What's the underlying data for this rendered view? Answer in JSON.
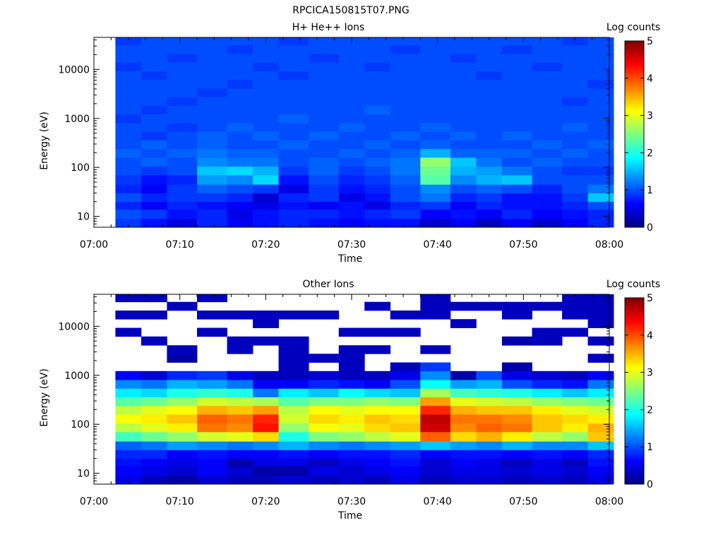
{
  "figure": {
    "title": "RPCICA150815T07.PNG"
  },
  "chart_data": [
    {
      "type": "heatmap",
      "title": "H+ He++ Ions",
      "xlabel": "Time",
      "ylabel": "Energy (eV)",
      "x_ticks": [
        "07:00",
        "07:10",
        "07:20",
        "07:30",
        "07:40",
        "07:50",
        "08:00"
      ],
      "xlim": [
        "07:00",
        "08:00"
      ],
      "y_ticks": [
        10,
        100,
        1000,
        10000
      ],
      "ylim": [
        6,
        45000
      ],
      "y_scale": "log",
      "colorbar": {
        "label": "Log counts",
        "range": [
          0,
          5
        ],
        "ticks": [
          "0",
          "1",
          "2",
          "3",
          "4",
          "5"
        ],
        "colormap": "jet"
      },
      "time_bins": [
        "07:04",
        "07:07",
        "07:10",
        "07:14",
        "07:17",
        "07:20",
        "07:23",
        "07:27",
        "07:30",
        "07:33",
        "07:36",
        "07:40",
        "07:43",
        "07:46",
        "07:49",
        "07:53",
        "07:56",
        "07:59"
      ],
      "energy_edges": [
        6,
        9,
        14,
        20,
        30,
        45,
        70,
        105,
        160,
        240,
        360,
        540,
        810,
        1220,
        1830,
        2750,
        4100,
        6200,
        9300,
        14000,
        21000,
        31500,
        45000
      ],
      "values_by_energy_bin": [
        [
          0.9,
          0.7,
          0.5,
          0.8,
          0.6,
          0.7,
          0.8,
          0.7,
          0.6,
          0.7,
          0.7,
          0.4,
          0.6,
          0.3,
          0.6,
          0.4,
          0.6,
          0.8
        ],
        [
          1.0,
          0.9,
          0.7,
          0.8,
          0.5,
          0.7,
          0.8,
          0.8,
          0.7,
          0.8,
          0.9,
          0.6,
          0.7,
          0.6,
          0.8,
          0.6,
          0.7,
          0.8
        ],
        [
          0.8,
          0.6,
          0.8,
          0.7,
          0.6,
          0.5,
          0.7,
          0.6,
          0.7,
          0.5,
          0.8,
          0.9,
          0.6,
          0.8,
          0.7,
          0.7,
          0.8,
          1.0
        ],
        [
          1.0,
          0.8,
          0.9,
          0.9,
          0.8,
          0.4,
          0.8,
          0.9,
          0.5,
          0.7,
          1.0,
          1.2,
          0.8,
          0.9,
          0.7,
          0.7,
          0.9,
          1.6
        ],
        [
          0.8,
          0.6,
          0.9,
          1.1,
          1.0,
          0.9,
          0.5,
          0.9,
          0.7,
          0.8,
          1.0,
          1.3,
          1.0,
          1.1,
          1.0,
          0.8,
          1.0,
          1.2
        ],
        [
          0.9,
          0.7,
          0.8,
          1.4,
          1.3,
          1.7,
          0.7,
          1.0,
          0.8,
          0.9,
          1.1,
          2.3,
          1.3,
          1.5,
          1.6,
          1.0,
          1.0,
          1.0
        ],
        [
          1.0,
          0.9,
          1.0,
          1.6,
          1.7,
          1.5,
          0.9,
          1.1,
          0.9,
          1.0,
          1.2,
          2.4,
          1.5,
          1.4,
          1.2,
          1.0,
          0.9,
          0.9
        ],
        [
          1.0,
          1.1,
          1.0,
          1.3,
          1.2,
          1.2,
          1.0,
          1.1,
          1.0,
          1.1,
          1.2,
          2.6,
          1.6,
          1.2,
          1.0,
          1.1,
          1.0,
          1.0
        ],
        [
          1.1,
          1.0,
          1.1,
          1.2,
          1.1,
          1.1,
          1.0,
          1.0,
          1.1,
          1.0,
          1.1,
          1.5,
          1.1,
          1.1,
          1.1,
          1.0,
          1.1,
          1.0
        ],
        [
          1.0,
          1.1,
          1.0,
          1.1,
          1.0,
          1.0,
          1.1,
          1.0,
          1.0,
          1.1,
          1.0,
          1.1,
          1.0,
          1.0,
          1.0,
          1.1,
          1.0,
          1.1
        ],
        [
          1.0,
          0.9,
          1.0,
          1.1,
          1.0,
          1.1,
          1.0,
          1.1,
          1.0,
          1.0,
          1.1,
          1.0,
          1.1,
          1.0,
          1.1,
          1.0,
          1.0,
          1.0
        ],
        [
          1.0,
          1.0,
          0.9,
          1.0,
          1.1,
          1.0,
          1.0,
          1.0,
          1.1,
          1.0,
          1.0,
          1.1,
          1.0,
          1.0,
          1.0,
          1.0,
          1.1,
          1.0
        ],
        [
          0.9,
          1.0,
          1.0,
          1.0,
          1.0,
          1.0,
          1.1,
          1.0,
          1.0,
          1.0,
          1.0,
          1.0,
          1.0,
          1.0,
          1.0,
          1.0,
          1.0,
          1.0
        ],
        [
          1.0,
          0.9,
          1.0,
          1.0,
          1.0,
          1.0,
          1.0,
          1.0,
          1.0,
          1.1,
          1.0,
          1.0,
          1.0,
          1.0,
          1.0,
          1.0,
          1.0,
          1.0
        ],
        [
          1.0,
          1.0,
          0.9,
          1.0,
          1.0,
          1.0,
          1.0,
          1.0,
          1.0,
          1.0,
          1.0,
          1.0,
          1.0,
          1.0,
          1.0,
          1.0,
          0.9,
          1.0
        ],
        [
          1.0,
          1.0,
          1.0,
          0.9,
          1.0,
          1.0,
          1.0,
          1.0,
          1.0,
          1.0,
          1.0,
          1.0,
          1.0,
          1.0,
          1.0,
          1.0,
          1.0,
          1.0
        ],
        [
          1.0,
          1.0,
          1.0,
          1.0,
          0.9,
          1.0,
          1.0,
          1.0,
          1.0,
          1.0,
          1.0,
          1.0,
          1.0,
          1.0,
          1.0,
          1.0,
          1.0,
          0.9
        ],
        [
          1.0,
          0.9,
          1.0,
          1.0,
          1.0,
          1.0,
          0.9,
          1.0,
          1.0,
          1.0,
          1.0,
          1.0,
          1.0,
          0.9,
          1.0,
          1.0,
          1.0,
          1.0
        ],
        [
          0.9,
          1.0,
          1.0,
          1.0,
          1.0,
          0.9,
          1.0,
          1.0,
          1.0,
          0.9,
          1.0,
          1.0,
          1.0,
          1.0,
          1.0,
          0.9,
          1.0,
          1.0
        ],
        [
          1.0,
          1.0,
          0.9,
          1.0,
          1.0,
          1.0,
          1.0,
          0.9,
          1.0,
          1.0,
          1.0,
          1.0,
          0.9,
          1.0,
          1.0,
          1.0,
          1.0,
          1.0
        ],
        [
          1.0,
          1.0,
          1.0,
          1.0,
          0.9,
          1.0,
          1.0,
          1.0,
          1.0,
          1.0,
          0.9,
          1.0,
          1.0,
          1.0,
          0.9,
          1.0,
          1.0,
          1.0
        ],
        [
          0.9,
          1.0,
          1.0,
          1.0,
          1.0,
          1.0,
          0.9,
          1.0,
          1.0,
          1.0,
          1.0,
          1.0,
          1.0,
          1.0,
          1.0,
          1.0,
          0.9,
          1.0
        ]
      ]
    },
    {
      "type": "heatmap",
      "title": "Other Ions",
      "xlabel": "Time",
      "ylabel": "Energy (eV)",
      "x_ticks": [
        "07:00",
        "07:10",
        "07:20",
        "07:30",
        "07:40",
        "07:50",
        "08:00"
      ],
      "xlim": [
        "07:00",
        "08:00"
      ],
      "y_ticks": [
        10,
        100,
        1000,
        10000
      ],
      "ylim": [
        6,
        45000
      ],
      "y_scale": "log",
      "colorbar": {
        "label": "Log counts",
        "range": [
          0,
          5
        ],
        "ticks": [
          "0",
          "1",
          "2",
          "3",
          "4",
          "5"
        ],
        "colormap": "jet"
      },
      "time_bins": [
        "07:04",
        "07:07",
        "07:10",
        "07:14",
        "07:17",
        "07:20",
        "07:23",
        "07:27",
        "07:30",
        "07:33",
        "07:36",
        "07:40",
        "07:43",
        "07:46",
        "07:49",
        "07:53",
        "07:56",
        "07:59"
      ],
      "energy_edges": [
        6,
        9,
        14,
        20,
        30,
        45,
        70,
        105,
        160,
        240,
        360,
        540,
        810,
        1220,
        1830,
        2750,
        4100,
        6200,
        9300,
        14000,
        21000,
        31500,
        45000
      ],
      "values_by_energy_bin": [
        [
          0.5,
          0.3,
          0.2,
          0.4,
          0.3,
          0.3,
          0.4,
          0.3,
          0.4,
          0.3,
          0.5,
          0.3,
          0.4,
          0.4,
          0.3,
          0.4,
          0.3,
          0.5
        ],
        [
          0.6,
          0.5,
          0.4,
          0.6,
          0.4,
          0.2,
          0.2,
          0.5,
          0.4,
          0.5,
          0.6,
          0.4,
          0.5,
          0.5,
          0.4,
          0.5,
          0.4,
          0.6
        ],
        [
          0.7,
          0.6,
          0.5,
          0.6,
          0.2,
          0.5,
          0.5,
          0.3,
          0.5,
          0.6,
          0.7,
          0.4,
          0.6,
          0.5,
          0.3,
          0.5,
          0.3,
          0.7
        ],
        [
          0.8,
          0.8,
          0.6,
          0.7,
          0.6,
          0.6,
          0.7,
          0.6,
          0.7,
          0.7,
          0.8,
          0.6,
          0.7,
          0.7,
          0.6,
          0.7,
          0.6,
          0.8
        ],
        [
          1.1,
          1.2,
          1.4,
          1.3,
          1.2,
          1.3,
          1.5,
          1.3,
          1.2,
          1.3,
          1.4,
          1.6,
          1.4,
          1.3,
          1.5,
          1.3,
          1.3,
          1.6
        ],
        [
          2.2,
          2.4,
          2.6,
          2.9,
          3.0,
          3.3,
          2.0,
          2.5,
          2.6,
          2.8,
          3.0,
          3.9,
          3.3,
          3.5,
          3.2,
          2.8,
          2.6,
          3.4
        ],
        [
          2.8,
          3.0,
          3.2,
          3.8,
          3.7,
          4.3,
          2.6,
          3.1,
          3.0,
          3.3,
          3.4,
          4.6,
          3.7,
          3.9,
          3.8,
          3.4,
          3.2,
          3.5
        ],
        [
          3.1,
          3.2,
          3.4,
          3.9,
          3.8,
          4.2,
          2.9,
          3.3,
          3.2,
          3.4,
          3.3,
          4.7,
          3.8,
          3.8,
          3.7,
          3.4,
          3.3,
          3.2
        ],
        [
          2.8,
          3.0,
          3.1,
          3.5,
          3.4,
          3.6,
          2.8,
          3.1,
          3.0,
          3.1,
          3.1,
          4.2,
          3.5,
          3.4,
          3.4,
          3.2,
          3.0,
          2.9
        ],
        [
          2.3,
          2.4,
          2.6,
          2.9,
          2.8,
          2.7,
          2.3,
          2.5,
          2.5,
          2.6,
          2.5,
          3.6,
          3.0,
          2.9,
          2.8,
          2.6,
          2.5,
          2.4
        ],
        [
          1.8,
          1.7,
          2.0,
          2.1,
          2.0,
          1.2,
          1.8,
          1.6,
          1.9,
          1.7,
          1.6,
          2.7,
          2.2,
          2.1,
          2.0,
          1.8,
          1.6,
          1.8
        ],
        [
          1.3,
          1.2,
          1.5,
          1.4,
          1.2,
          0.6,
          0.6,
          0.8,
          0.7,
          0.6,
          1.0,
          1.9,
          1.4,
          1.5,
          1.0,
          0.8,
          0.7,
          1.2
        ],
        [
          0.6,
          0.4,
          0.8,
          0.9,
          0.5,
          0.3,
          0.3,
          0.4,
          0.3,
          0.3,
          0.5,
          1.3,
          0.2,
          1.0,
          0.5,
          0.4,
          0.3,
          0.6
        ],
        [
          null,
          null,
          null,
          null,
          null,
          null,
          0.3,
          null,
          0.3,
          null,
          0.3,
          0.9,
          null,
          null,
          0.2,
          null,
          null,
          null
        ],
        [
          null,
          null,
          0.2,
          null,
          null,
          null,
          0.3,
          0.3,
          0.3,
          null,
          null,
          null,
          null,
          null,
          null,
          null,
          null,
          0.3
        ],
        [
          null,
          null,
          0.3,
          null,
          0.3,
          null,
          0.3,
          null,
          0.3,
          0.3,
          null,
          0.3,
          null,
          null,
          null,
          null,
          null,
          null
        ],
        [
          null,
          0.3,
          null,
          null,
          0.3,
          0.3,
          0.3,
          null,
          null,
          null,
          null,
          null,
          null,
          null,
          0.2,
          0.3,
          null,
          0.3
        ],
        [
          0.3,
          null,
          null,
          0.3,
          null,
          null,
          null,
          null,
          0.3,
          0.3,
          0.3,
          null,
          null,
          null,
          null,
          0.3,
          0.3,
          null
        ],
        [
          null,
          null,
          null,
          null,
          null,
          0.3,
          null,
          null,
          null,
          null,
          null,
          null,
          0.3,
          null,
          null,
          null,
          null,
          0.3
        ],
        [
          0.3,
          0.3,
          null,
          0.3,
          0.3,
          0.3,
          0.3,
          0.3,
          null,
          null,
          0.3,
          0.3,
          null,
          null,
          0.3,
          null,
          0.3,
          0.3
        ],
        [
          null,
          null,
          0.3,
          null,
          null,
          null,
          null,
          null,
          null,
          0.3,
          null,
          0.3,
          0.3,
          0.3,
          0.3,
          0.3,
          0.3,
          0.3
        ],
        [
          0.3,
          0.3,
          null,
          0.3,
          null,
          null,
          null,
          null,
          null,
          null,
          null,
          0.3,
          null,
          null,
          null,
          null,
          0.3,
          0.3
        ]
      ]
    }
  ]
}
